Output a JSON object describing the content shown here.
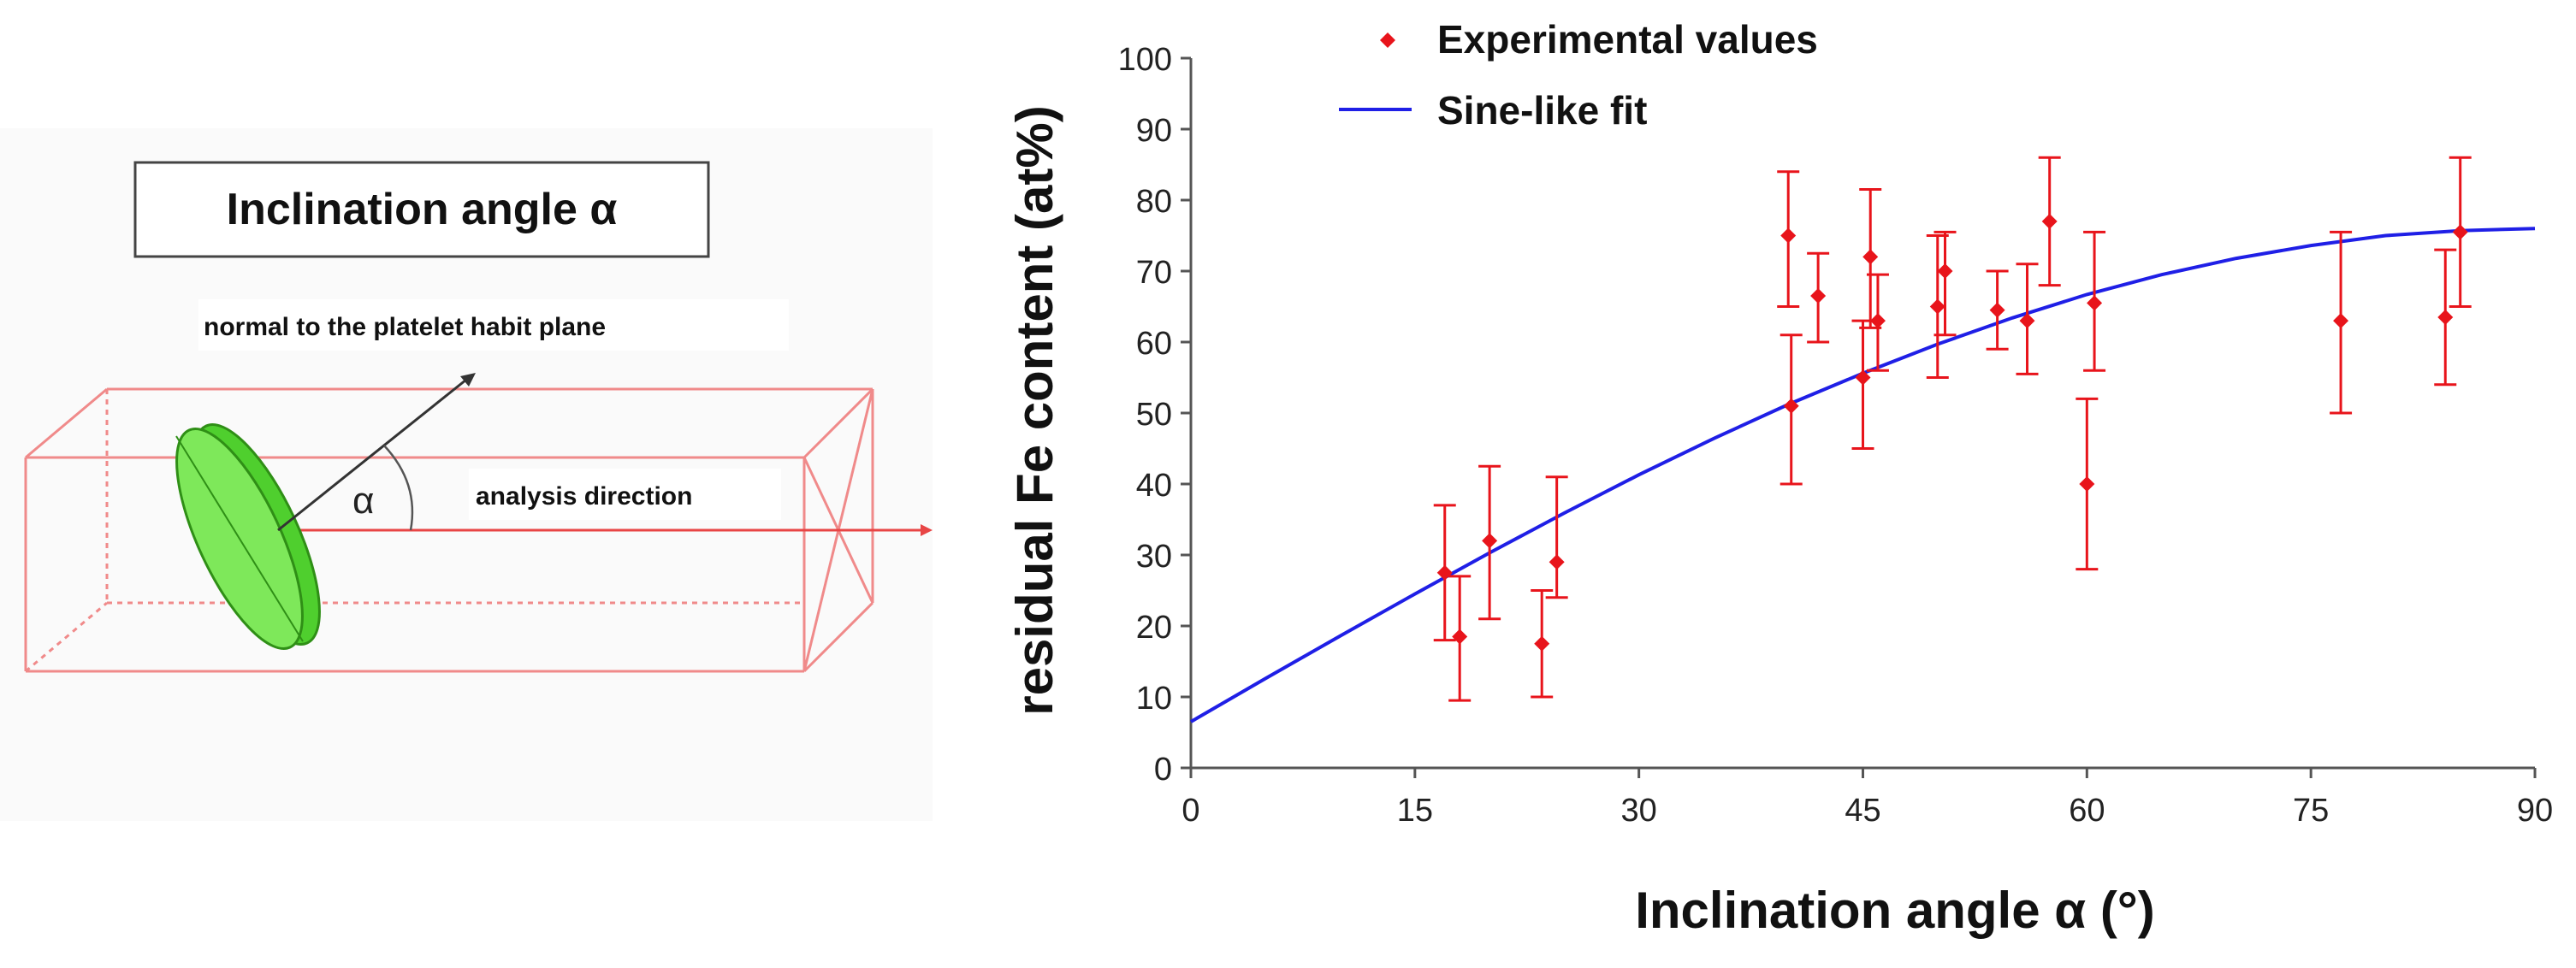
{
  "diagram": {
    "title": "Inclination angle α",
    "normal_label": "normal to the platelet habit plane",
    "analysis_label": "analysis direction",
    "angle_symbol": "α"
  },
  "chart_data": {
    "type": "scatter",
    "xlabel": "Inclination angle α (°)",
    "ylabel": "residual Fe content  (at%)",
    "xlim": [
      0,
      90
    ],
    "ylim": [
      0,
      100
    ],
    "xticks": [
      "0",
      "15",
      "30",
      "45",
      "60",
      "75",
      "90"
    ],
    "yticks": [
      "0",
      "10",
      "20",
      "30",
      "40",
      "50",
      "60",
      "70",
      "80",
      "90",
      "100"
    ],
    "grid": false,
    "legend": {
      "position": "top",
      "entries": [
        "Experimental  values",
        "Sine-like fit"
      ]
    },
    "series": [
      {
        "name": "Experimental  values",
        "kind": "points_with_error_bars",
        "color": "#e8141b",
        "points": [
          {
            "x": 17,
            "y": 27.5,
            "err_low": 18,
            "err_high": 37
          },
          {
            "x": 18,
            "y": 18.5,
            "err_low": 9.5,
            "err_high": 27
          },
          {
            "x": 20,
            "y": 32,
            "err_low": 21,
            "err_high": 42.5
          },
          {
            "x": 23.5,
            "y": 17.5,
            "err_low": 10,
            "err_high": 25
          },
          {
            "x": 24.5,
            "y": 29,
            "err_low": 24,
            "err_high": 41
          },
          {
            "x": 40,
            "y": 75,
            "err_low": 65,
            "err_high": 84
          },
          {
            "x": 40.2,
            "y": 51,
            "err_low": 40,
            "err_high": 61
          },
          {
            "x": 42,
            "y": 66.5,
            "err_low": 60,
            "err_high": 72.5
          },
          {
            "x": 45,
            "y": 55,
            "err_low": 45,
            "err_high": 63
          },
          {
            "x": 45.5,
            "y": 72,
            "err_low": 62,
            "err_high": 81.5
          },
          {
            "x": 46,
            "y": 63,
            "err_low": 56,
            "err_high": 69.5
          },
          {
            "x": 50,
            "y": 65,
            "err_low": 55,
            "err_high": 75
          },
          {
            "x": 50.5,
            "y": 70,
            "err_low": 61,
            "err_high": 75.5
          },
          {
            "x": 54,
            "y": 64.5,
            "err_low": 59,
            "err_high": 70
          },
          {
            "x": 56,
            "y": 63,
            "err_low": 55.5,
            "err_high": 71
          },
          {
            "x": 57.5,
            "y": 77,
            "err_low": 68,
            "err_high": 86
          },
          {
            "x": 60,
            "y": 40,
            "err_low": 28,
            "err_high": 52
          },
          {
            "x": 60.5,
            "y": 65.5,
            "err_low": 56,
            "err_high": 75.5
          },
          {
            "x": 77,
            "y": 63,
            "err_low": 50,
            "err_high": 75.5
          },
          {
            "x": 84,
            "y": 63.5,
            "err_low": 54,
            "err_high": 73
          },
          {
            "x": 85,
            "y": 75.5,
            "err_low": 65,
            "err_high": 86
          }
        ]
      },
      {
        "name": "Sine-like fit",
        "kind": "line",
        "color": "#1f1fe6",
        "formula": "y = 6.5 + 69.5 * sin(x)",
        "x": [
          0,
          5,
          10,
          15,
          20,
          25,
          30,
          35,
          40,
          45,
          50,
          55,
          60,
          65,
          70,
          75,
          80,
          85,
          90
        ],
        "y": [
          6.5,
          12.6,
          18.6,
          24.5,
          30.3,
          35.9,
          41.3,
          46.4,
          51.2,
          55.6,
          59.7,
          63.4,
          66.7,
          69.5,
          71.8,
          73.6,
          75.0,
          75.7,
          76.0
        ]
      }
    ]
  }
}
